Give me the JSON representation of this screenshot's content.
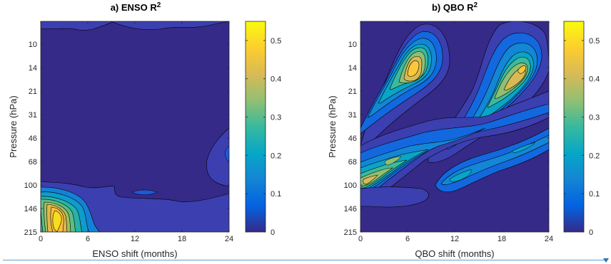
{
  "chart_data": [
    {
      "type": "heatmap",
      "subtype": "filled-contour",
      "panel": "a",
      "title": "a) ENSO R",
      "title_superscript": "2",
      "xlabel": "ENSO shift (months)",
      "ylabel": "Pressure (hPa)",
      "xlim": [
        0,
        24
      ],
      "xticks": [
        "0",
        "6",
        "12",
        "18",
        "24"
      ],
      "yticks": [
        "10",
        "14",
        "21",
        "31",
        "46",
        "68",
        "100",
        "146",
        "215"
      ],
      "y_axis": "pressure levels, evenly spaced, 215 hPa at bottom",
      "colorbar": {
        "range": [
          0,
          0.55
        ],
        "ticks": [
          "0",
          "0.1",
          "0.2",
          "0.3",
          "0.4",
          "0.5"
        ],
        "colormap": "parula"
      },
      "features": [
        {
          "description": "maximum",
          "shift": 3,
          "pressure": 170,
          "r2": 0.48
        },
        {
          "description": "local maximum",
          "shift": 13,
          "pressure": 105,
          "r2": 0.12
        },
        {
          "description": "local maximum",
          "shift": 24,
          "pressure": 56,
          "r2": 0.12
        }
      ]
    },
    {
      "type": "heatmap",
      "subtype": "filled-contour",
      "panel": "b",
      "title": "b) QBO R",
      "title_superscript": "2",
      "xlabel": "QBO shift (months)",
      "ylabel": "Pressure (hPa)",
      "xlim": [
        0,
        24
      ],
      "xticks": [
        "0",
        "6",
        "12",
        "18",
        "24"
      ],
      "yticks": [
        "10",
        "14",
        "21",
        "31",
        "46",
        "68",
        "100",
        "146",
        "215"
      ],
      "y_axis": "pressure levels, evenly spaced, 215 hPa at bottom",
      "colorbar": {
        "range": [
          0,
          0.55
        ],
        "ticks": [
          "0",
          "0.1",
          "0.2",
          "0.3",
          "0.4",
          "0.5"
        ],
        "colormap": "parula"
      },
      "features": [
        {
          "description": "maximum",
          "shift": 7,
          "pressure": 16,
          "r2": 0.5
        },
        {
          "description": "maximum",
          "shift": 21,
          "pressure": 15,
          "r2": 0.48
        },
        {
          "description": "maximum",
          "shift": 2,
          "pressure": 100,
          "r2": 0.45
        },
        {
          "description": "local maximum",
          "shift": 5,
          "pressure": 68,
          "r2": 0.3
        },
        {
          "description": "local maximum",
          "shift": 13,
          "pressure": 92,
          "r2": 0.25
        },
        {
          "description": "local maximum",
          "shift": 19,
          "pressure": 60,
          "r2": 0.2
        }
      ]
    }
  ],
  "colors": {
    "parula_low": "#352a87",
    "parula_mid": "#17beb8",
    "parula_high": "#f9fb0e",
    "accent_rule": "#5aa0d8"
  }
}
